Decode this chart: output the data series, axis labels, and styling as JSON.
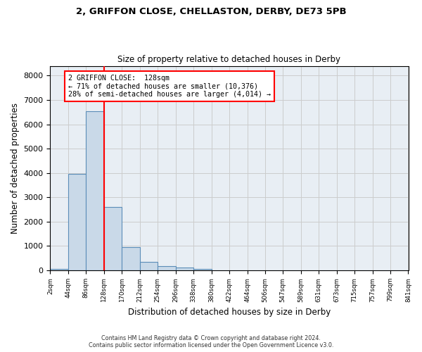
{
  "title1": "2, GRIFFON CLOSE, CHELLASTON, DERBY, DE73 5PB",
  "title2": "Size of property relative to detached houses in Derby",
  "xlabel": "Distribution of detached houses by size in Derby",
  "ylabel": "Number of detached properties",
  "footer1": "Contains HM Land Registry data © Crown copyright and database right 2024.",
  "footer2": "Contains public sector information licensed under the Open Government Licence v3.0.",
  "annotation_line1": "2 GRIFFON CLOSE:  128sqm",
  "annotation_line2": "← 71% of detached houses are smaller (10,376)",
  "annotation_line3": "28% of semi-detached houses are larger (4,014) →",
  "bar_edges": [
    2,
    44,
    86,
    128,
    170,
    212,
    254,
    296,
    338,
    380,
    422,
    464,
    506,
    547,
    589,
    631,
    673,
    715,
    757,
    799,
    841
  ],
  "bar_values": [
    50,
    3950,
    6550,
    2600,
    950,
    350,
    170,
    120,
    60,
    0,
    0,
    0,
    0,
    0,
    0,
    0,
    0,
    0,
    0,
    0
  ],
  "bar_color": "#c9d9e8",
  "bar_edgecolor": "#5b8db8",
  "redline_x": 128,
  "ylim": [
    0,
    8400
  ],
  "yticks": [
    0,
    1000,
    2000,
    3000,
    4000,
    5000,
    6000,
    7000,
    8000
  ],
  "grid_color": "#cccccc",
  "background_color": "#e8eef4"
}
